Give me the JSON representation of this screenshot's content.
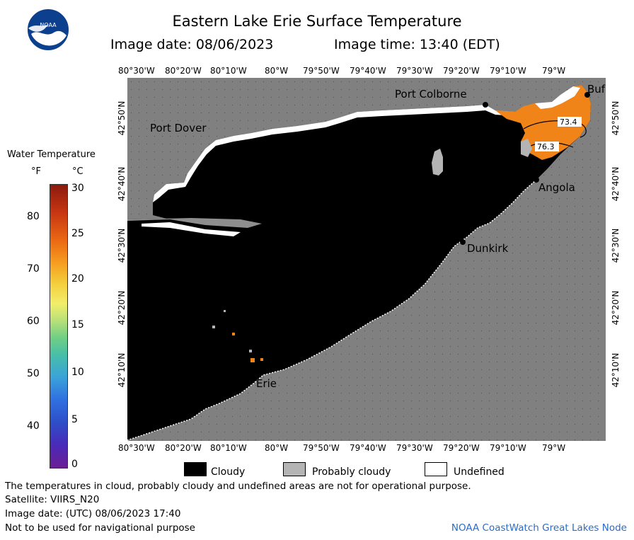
{
  "header": {
    "title": "Eastern Lake Erie Surface Temperature",
    "image_date": "Image date: 08/06/2023",
    "image_time": "Image time: 13:40 (EDT)",
    "logo_text": "NOAA"
  },
  "axes": {
    "longitudes": [
      "80°30'W",
      "80°20'W",
      "80°10'W",
      "80°W",
      "79°50'W",
      "79°40'W",
      "79°30'W",
      "79°20'W",
      "79°10'W",
      "79°W"
    ],
    "latitudes_left": [
      "42°50'N",
      "42°40'N",
      "42°30'N",
      "42°20'N",
      "42°10'N"
    ],
    "latitudes_right": [
      "42°50'N",
      "42°40'N",
      "42°30'N",
      "42°20'N",
      "42°10'N"
    ]
  },
  "colorbar": {
    "title": "Water Temperature",
    "unit_f": "°F",
    "unit_c": "°C",
    "f_ticks": [
      "80",
      "70",
      "60",
      "50",
      "40"
    ],
    "c_ticks": [
      "30",
      "25",
      "20",
      "15",
      "10",
      "5",
      "0"
    ]
  },
  "map": {
    "places": [
      "Port Colborne",
      "Port Dover",
      "Angola",
      "Dunkirk",
      "Erie",
      "Buf"
    ],
    "isotherm_labels": [
      "73.4",
      "76.3"
    ],
    "colors": {
      "land": "#808080",
      "cloud": "#000000",
      "probably_cloudy": "#b4b4b4",
      "undefined": "#ffffff",
      "warm_water": "#f08418"
    }
  },
  "key": {
    "cloudy": "Cloudy",
    "probably_cloudy": "Probably cloudy",
    "undefined": "Undefined"
  },
  "footer": {
    "note": "The temperatures in cloud, probably cloudy and undefined areas are not for operational purpose.",
    "satellite": "Satellite: VIIRS_N20",
    "utc_date": "Image date: (UTC) 08/06/2023  17:40",
    "nav_warning": "Not to be used for navigational purpose",
    "credit": "NOAA CoastWatch Great Lakes Node"
  }
}
